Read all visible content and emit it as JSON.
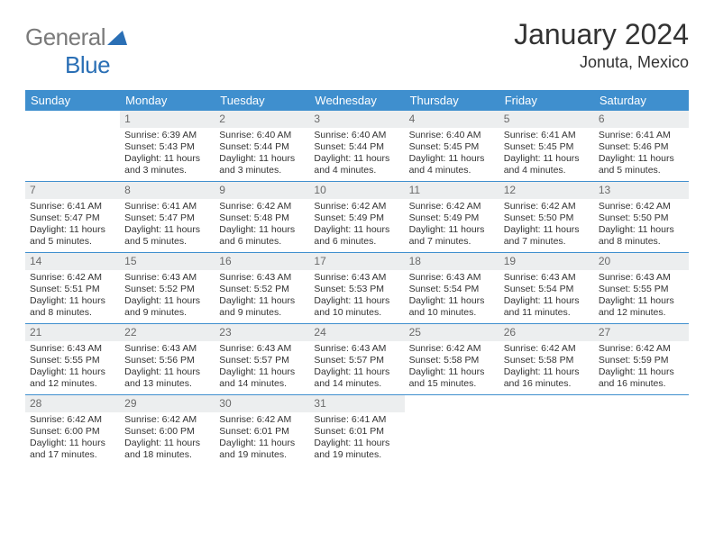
{
  "logo": {
    "text1": "General",
    "text2": "Blue"
  },
  "title": "January 2024",
  "location": "Jonuta, Mexico",
  "colors": {
    "header_bg": "#3f8fce",
    "header_text": "#ffffff",
    "daynum_bg": "#eceeef",
    "daynum_text": "#6a6a6a",
    "body_text": "#333333",
    "row_border": "#3f8fce",
    "logo_gray": "#7a7a7a",
    "logo_blue": "#2a6fb5"
  },
  "weekdays": [
    "Sunday",
    "Monday",
    "Tuesday",
    "Wednesday",
    "Thursday",
    "Friday",
    "Saturday"
  ],
  "weeks": [
    [
      null,
      {
        "n": "1",
        "sr": "Sunrise: 6:39 AM",
        "ss": "Sunset: 5:43 PM",
        "d1": "Daylight: 11 hours",
        "d2": "and 3 minutes."
      },
      {
        "n": "2",
        "sr": "Sunrise: 6:40 AM",
        "ss": "Sunset: 5:44 PM",
        "d1": "Daylight: 11 hours",
        "d2": "and 3 minutes."
      },
      {
        "n": "3",
        "sr": "Sunrise: 6:40 AM",
        "ss": "Sunset: 5:44 PM",
        "d1": "Daylight: 11 hours",
        "d2": "and 4 minutes."
      },
      {
        "n": "4",
        "sr": "Sunrise: 6:40 AM",
        "ss": "Sunset: 5:45 PM",
        "d1": "Daylight: 11 hours",
        "d2": "and 4 minutes."
      },
      {
        "n": "5",
        "sr": "Sunrise: 6:41 AM",
        "ss": "Sunset: 5:45 PM",
        "d1": "Daylight: 11 hours",
        "d2": "and 4 minutes."
      },
      {
        "n": "6",
        "sr": "Sunrise: 6:41 AM",
        "ss": "Sunset: 5:46 PM",
        "d1": "Daylight: 11 hours",
        "d2": "and 5 minutes."
      }
    ],
    [
      {
        "n": "7",
        "sr": "Sunrise: 6:41 AM",
        "ss": "Sunset: 5:47 PM",
        "d1": "Daylight: 11 hours",
        "d2": "and 5 minutes."
      },
      {
        "n": "8",
        "sr": "Sunrise: 6:41 AM",
        "ss": "Sunset: 5:47 PM",
        "d1": "Daylight: 11 hours",
        "d2": "and 5 minutes."
      },
      {
        "n": "9",
        "sr": "Sunrise: 6:42 AM",
        "ss": "Sunset: 5:48 PM",
        "d1": "Daylight: 11 hours",
        "d2": "and 6 minutes."
      },
      {
        "n": "10",
        "sr": "Sunrise: 6:42 AM",
        "ss": "Sunset: 5:49 PM",
        "d1": "Daylight: 11 hours",
        "d2": "and 6 minutes."
      },
      {
        "n": "11",
        "sr": "Sunrise: 6:42 AM",
        "ss": "Sunset: 5:49 PM",
        "d1": "Daylight: 11 hours",
        "d2": "and 7 minutes."
      },
      {
        "n": "12",
        "sr": "Sunrise: 6:42 AM",
        "ss": "Sunset: 5:50 PM",
        "d1": "Daylight: 11 hours",
        "d2": "and 7 minutes."
      },
      {
        "n": "13",
        "sr": "Sunrise: 6:42 AM",
        "ss": "Sunset: 5:50 PM",
        "d1": "Daylight: 11 hours",
        "d2": "and 8 minutes."
      }
    ],
    [
      {
        "n": "14",
        "sr": "Sunrise: 6:42 AM",
        "ss": "Sunset: 5:51 PM",
        "d1": "Daylight: 11 hours",
        "d2": "and 8 minutes."
      },
      {
        "n": "15",
        "sr": "Sunrise: 6:43 AM",
        "ss": "Sunset: 5:52 PM",
        "d1": "Daylight: 11 hours",
        "d2": "and 9 minutes."
      },
      {
        "n": "16",
        "sr": "Sunrise: 6:43 AM",
        "ss": "Sunset: 5:52 PM",
        "d1": "Daylight: 11 hours",
        "d2": "and 9 minutes."
      },
      {
        "n": "17",
        "sr": "Sunrise: 6:43 AM",
        "ss": "Sunset: 5:53 PM",
        "d1": "Daylight: 11 hours",
        "d2": "and 10 minutes."
      },
      {
        "n": "18",
        "sr": "Sunrise: 6:43 AM",
        "ss": "Sunset: 5:54 PM",
        "d1": "Daylight: 11 hours",
        "d2": "and 10 minutes."
      },
      {
        "n": "19",
        "sr": "Sunrise: 6:43 AM",
        "ss": "Sunset: 5:54 PM",
        "d1": "Daylight: 11 hours",
        "d2": "and 11 minutes."
      },
      {
        "n": "20",
        "sr": "Sunrise: 6:43 AM",
        "ss": "Sunset: 5:55 PM",
        "d1": "Daylight: 11 hours",
        "d2": "and 12 minutes."
      }
    ],
    [
      {
        "n": "21",
        "sr": "Sunrise: 6:43 AM",
        "ss": "Sunset: 5:55 PM",
        "d1": "Daylight: 11 hours",
        "d2": "and 12 minutes."
      },
      {
        "n": "22",
        "sr": "Sunrise: 6:43 AM",
        "ss": "Sunset: 5:56 PM",
        "d1": "Daylight: 11 hours",
        "d2": "and 13 minutes."
      },
      {
        "n": "23",
        "sr": "Sunrise: 6:43 AM",
        "ss": "Sunset: 5:57 PM",
        "d1": "Daylight: 11 hours",
        "d2": "and 14 minutes."
      },
      {
        "n": "24",
        "sr": "Sunrise: 6:43 AM",
        "ss": "Sunset: 5:57 PM",
        "d1": "Daylight: 11 hours",
        "d2": "and 14 minutes."
      },
      {
        "n": "25",
        "sr": "Sunrise: 6:42 AM",
        "ss": "Sunset: 5:58 PM",
        "d1": "Daylight: 11 hours",
        "d2": "and 15 minutes."
      },
      {
        "n": "26",
        "sr": "Sunrise: 6:42 AM",
        "ss": "Sunset: 5:58 PM",
        "d1": "Daylight: 11 hours",
        "d2": "and 16 minutes."
      },
      {
        "n": "27",
        "sr": "Sunrise: 6:42 AM",
        "ss": "Sunset: 5:59 PM",
        "d1": "Daylight: 11 hours",
        "d2": "and 16 minutes."
      }
    ],
    [
      {
        "n": "28",
        "sr": "Sunrise: 6:42 AM",
        "ss": "Sunset: 6:00 PM",
        "d1": "Daylight: 11 hours",
        "d2": "and 17 minutes."
      },
      {
        "n": "29",
        "sr": "Sunrise: 6:42 AM",
        "ss": "Sunset: 6:00 PM",
        "d1": "Daylight: 11 hours",
        "d2": "and 18 minutes."
      },
      {
        "n": "30",
        "sr": "Sunrise: 6:42 AM",
        "ss": "Sunset: 6:01 PM",
        "d1": "Daylight: 11 hours",
        "d2": "and 19 minutes."
      },
      {
        "n": "31",
        "sr": "Sunrise: 6:41 AM",
        "ss": "Sunset: 6:01 PM",
        "d1": "Daylight: 11 hours",
        "d2": "and 19 minutes."
      },
      null,
      null,
      null
    ]
  ]
}
